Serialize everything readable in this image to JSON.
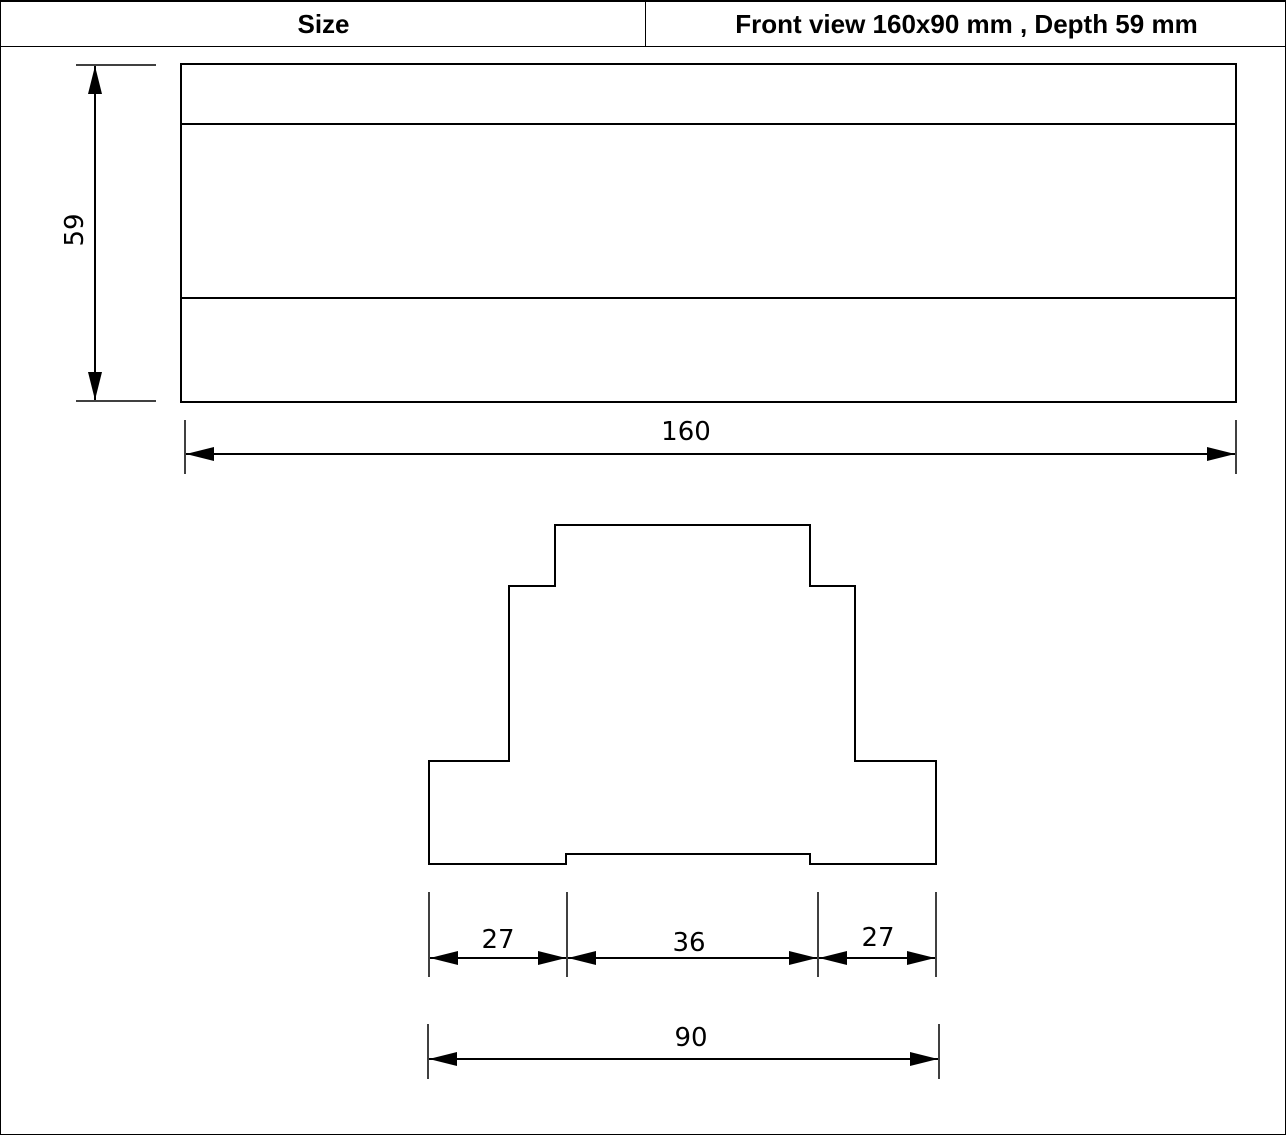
{
  "header": {
    "label": "Size",
    "value": "Front view  160x90 mm , Depth 59 mm"
  },
  "drawing": {
    "top_view": {
      "height_dimension": "59",
      "width_dimension": "160"
    },
    "front_view": {
      "segment_left": "27",
      "segment_middle": "36",
      "segment_right": "27",
      "overall_width": "90"
    }
  }
}
